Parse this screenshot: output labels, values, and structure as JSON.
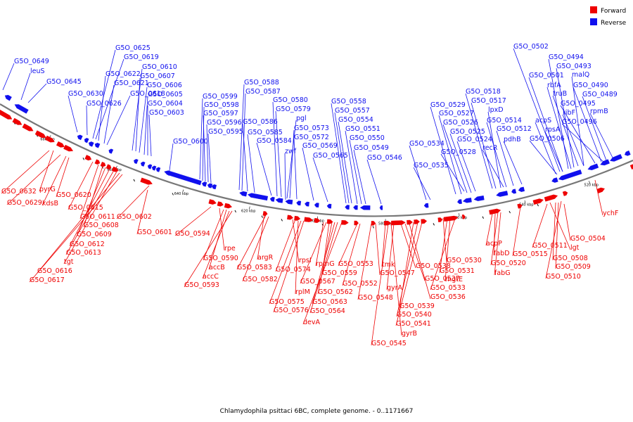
{
  "caption": "Chlamydophila psittaci 6BC, complete genome. - 0..1171667",
  "legend": [
    {
      "label": "Forward",
      "color": "#ee0000"
    },
    {
      "label": "Reverse",
      "color": "#1010ee"
    }
  ],
  "tick_labels": [
    "680 kbp",
    "660 kbp",
    "640 kbp",
    "620 kbp",
    "600 kbp",
    "580 kbp",
    "560 kbp",
    "540 kbp",
    "520 kbp"
  ],
  "reverse_labels": [
    "G5O_0649",
    "leuS",
    "G5O_0645",
    "G5O_0630",
    "G5O_0626",
    "G5O_0625",
    "G5O_0619",
    "G5O_0622",
    "G5O_0621",
    "G5O_0618",
    "G5O_0610",
    "G5O_0607",
    "G5O_0606",
    "G5O_0605",
    "G5O_0604",
    "G5O_0603",
    "G5O_0600",
    "G5O_0599",
    "G5O_0598",
    "G5O_0597",
    "G5O_0596",
    "G5O_0595",
    "G5O_0588",
    "G5O_0587",
    "G5O_0586",
    "G5O_0585",
    "G5O_0584",
    "G5O_0580",
    "G5O_0579",
    "pgl",
    "G5O_0573",
    "G5O_0572",
    "zwf",
    "G5O_0569",
    "G5O_0565",
    "G5O_0558",
    "G5O_0557",
    "G5O_0554",
    "G5O_0551",
    "G5O_0550",
    "G5O_0549",
    "G5O_0546",
    "G5O_0534",
    "G5O_0535",
    "G5O_0529",
    "G5O_0527",
    "G5O_0526",
    "G5O_0525",
    "G5O_0524",
    "G5O_0528",
    "G5O_0518",
    "G5O_0517",
    "lpxD",
    "G5O_0514",
    "G5O_0512",
    "recR",
    "pdhB",
    "G5O_0502",
    "G5O_0494",
    "G5O_0493",
    "malQ",
    "G5O_0501",
    "rbfA",
    "truB",
    "G5O_0490",
    "G5O_0489",
    "G5O_0495",
    "acpS",
    "rpsA",
    "ribF",
    "rpmB",
    "G5O_0496",
    "G5O_0506"
  ],
  "forward_labels": [
    "G5O_0632",
    "pyrG",
    "G5O_0629",
    "kdsB",
    "G5O_0620",
    "G5O_0615",
    "G5O_0611",
    "G5O_0608",
    "G5O_0609",
    "G5O_0612",
    "G5O_0613",
    "tgt",
    "G5O_0616",
    "G5O_0617",
    "G5O_0602",
    "G5O_0601",
    "G5O_0594",
    "rpe",
    "G5O_0590",
    "accB",
    "accC",
    "G5O_0593",
    "argR",
    "G5O_0583",
    "G5O_0582",
    "rpsI",
    "G5O_0574",
    "rplM",
    "G5O_0575",
    "G5O_0576",
    "rpmG",
    "G5O_0567",
    "G5O_0559",
    "G5O_0562",
    "G5O_0563",
    "G5O_0564",
    "devA",
    "G5O_0553",
    "G5O_0552",
    "G5O_0547",
    "tmk",
    "G5O_0548",
    "gyrA",
    "G5O_0538",
    "G5O_0537",
    "G5O_0536",
    "G5O_0539",
    "G5O_0540",
    "G5O_0541",
    "gyrB",
    "G5O_0545",
    "G5O_0530",
    "G5O_0531",
    "mgtE",
    "G5O_0533",
    "acpP",
    "fabD",
    "G5O_0520",
    "fabG",
    "G5O_0515",
    "G5O_0511",
    "lgt",
    "G5O_0508",
    "G5O_0509",
    "G5O_0510",
    "G5O_0504",
    "ychF"
  ]
}
